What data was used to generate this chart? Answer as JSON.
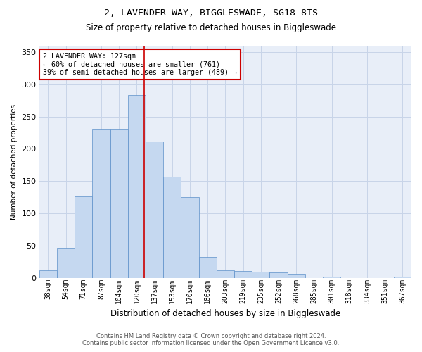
{
  "title1": "2, LAVENDER WAY, BIGGLESWADE, SG18 8TS",
  "title2": "Size of property relative to detached houses in Biggleswade",
  "xlabel": "Distribution of detached houses by size in Biggleswade",
  "ylabel": "Number of detached properties",
  "categories": [
    "38sqm",
    "54sqm",
    "71sqm",
    "87sqm",
    "104sqm",
    "120sqm",
    "137sqm",
    "153sqm",
    "170sqm",
    "186sqm",
    "203sqm",
    "219sqm",
    "235sqm",
    "252sqm",
    "268sqm",
    "285sqm",
    "301sqm",
    "318sqm",
    "334sqm",
    "351sqm",
    "367sqm"
  ],
  "values": [
    11,
    46,
    126,
    231,
    231,
    284,
    211,
    157,
    125,
    32,
    11,
    10,
    9,
    8,
    6,
    0,
    2,
    0,
    0,
    0,
    2
  ],
  "bar_color": "#c5d8f0",
  "bar_edge_color": "#5b8fc9",
  "marker_line_color": "#cc0000",
  "annotation_text": "2 LAVENDER WAY: 127sqm\n← 60% of detached houses are smaller (761)\n39% of semi-detached houses are larger (489) →",
  "annotation_box_color": "#ffffff",
  "annotation_box_edge": "#cc0000",
  "footer1": "Contains HM Land Registry data © Crown copyright and database right 2024.",
  "footer2": "Contains public sector information licensed under the Open Government Licence v3.0.",
  "ylim": [
    0,
    360
  ],
  "yticks": [
    0,
    50,
    100,
    150,
    200,
    250,
    300,
    350
  ],
  "grid_color": "#c8d4e8",
  "background_color": "#e8eef8"
}
